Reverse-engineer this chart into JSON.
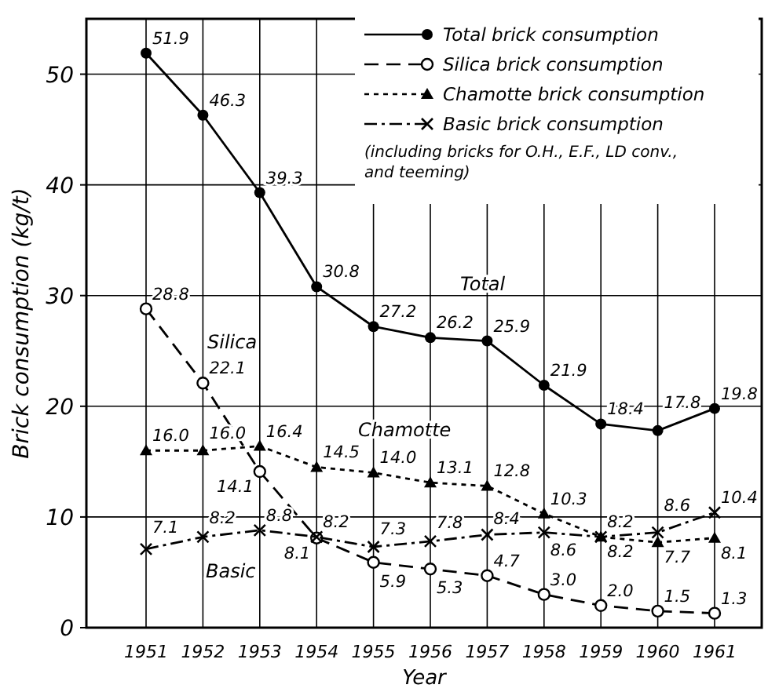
{
  "chart_data": {
    "type": "line",
    "xlabel": "Year",
    "ylabel": "Brick consumption (kg/t)",
    "categories": [
      "1951",
      "1952",
      "1953",
      "1954",
      "1955",
      "1956",
      "1957",
      "1958",
      "1959",
      "1960",
      "1961"
    ],
    "series": [
      {
        "name": "Total brick consumption",
        "color": "#000000",
        "marker": "circle",
        "line_style": "solid",
        "values": [
          51.9,
          46.3,
          39.3,
          30.8,
          27.2,
          26.2,
          25.9,
          21.9,
          18.4,
          17.8,
          19.8
        ],
        "value_labels": [
          "51.9",
          "46.3",
          "39.3",
          "30.8",
          "27.2",
          "26.2",
          "25.9",
          "21.9",
          "18.4",
          "17.8",
          "19.8"
        ]
      },
      {
        "name": "Silica brick consumption",
        "color": "#000000",
        "marker": "open-circle",
        "line_style": "dashed",
        "values": [
          28.8,
          22.1,
          14.1,
          8.1,
          5.9,
          5.3,
          4.7,
          3.0,
          2.0,
          1.5,
          1.3
        ],
        "value_labels": [
          "28.8",
          "22.1",
          "14.1",
          "8.1",
          "5.9",
          "5.3",
          "4.7",
          "3.0",
          "2.0",
          "1.5",
          "1.3"
        ]
      },
      {
        "name": "Chamotte brick consumption",
        "color": "#000000",
        "marker": "triangle",
        "line_style": "dotted",
        "values": [
          16.0,
          16.0,
          16.4,
          14.5,
          14.0,
          13.1,
          12.8,
          10.3,
          8.2,
          7.7,
          8.1
        ],
        "value_labels": [
          "16.0",
          "16.0",
          "16.4",
          "14.5",
          "14.0",
          "13.1",
          "12.8",
          "10.3",
          "8.2",
          "7.7",
          "8.1"
        ]
      },
      {
        "name": "Basic brick consumption",
        "color": "#000000",
        "marker": "cross",
        "line_style": "dashdot",
        "values": [
          7.1,
          8.2,
          8.8,
          8.2,
          7.3,
          7.8,
          8.4,
          8.6,
          8.2,
          8.6,
          10.4
        ],
        "value_labels": [
          "7.1",
          "8.2",
          "8.8",
          "8.2",
          "7.3",
          "7.8",
          "8.4",
          "8.6",
          "8.2",
          "8.6",
          "10.4"
        ]
      }
    ],
    "ylim": [
      0,
      55
    ],
    "yticks": [
      0,
      10,
      20,
      30,
      40,
      50
    ],
    "grid": true,
    "legend": "top right",
    "annotations": [
      "(including bricks for O.H., E.F., LD conv., and teeming)",
      "Total",
      "Silica",
      "Chamotte",
      "Basic"
    ]
  }
}
